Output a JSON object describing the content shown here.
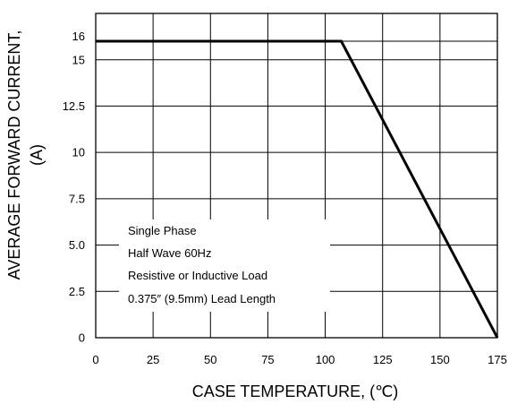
{
  "chart_data": {
    "type": "line",
    "xlabel": "CASE TEMPERATURE, (℃)",
    "ylabel_line1": "AVERAGE FORWARD CURRENT,",
    "ylabel_line2": "(A)",
    "xlim": [
      0,
      175
    ],
    "ylim": [
      0,
      17.5
    ],
    "x_ticks": [
      0,
      25,
      50,
      75,
      100,
      125,
      150,
      175
    ],
    "x_tick_labels": [
      "0",
      "25",
      "50",
      "75",
      "100",
      "125",
      "150",
      "175"
    ],
    "y_ticks": [
      0,
      2.5,
      5.0,
      7.5,
      10,
      12.5,
      15,
      16
    ],
    "y_tick_labels": [
      "0",
      "2.5",
      "5.0",
      "7.5",
      "10",
      "12.5",
      "15",
      "16"
    ],
    "grid": true,
    "series": [
      {
        "x": [
          0,
          107,
          175
        ],
        "y": [
          16,
          16,
          0
        ]
      }
    ],
    "annotations": [
      "Single Phase",
      "Half Wave 60Hz",
      "Resistive or Inductive Load",
      "0.375″ (9.5mm) Lead Length"
    ]
  }
}
